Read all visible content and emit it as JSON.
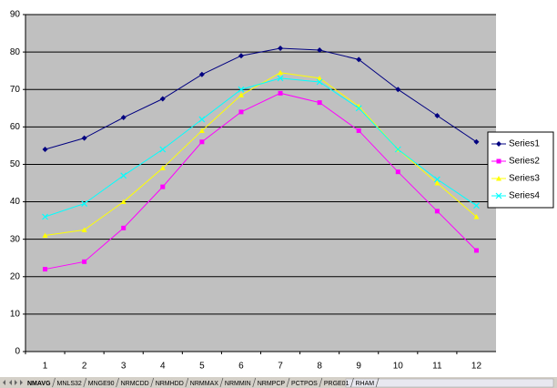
{
  "chart_data": {
    "type": "line",
    "categories": [
      "1",
      "2",
      "3",
      "4",
      "5",
      "6",
      "7",
      "8",
      "9",
      "10",
      "11",
      "12"
    ],
    "series": [
      {
        "name": "Series1",
        "color": "#000080",
        "marker": "diamond",
        "values": [
          54,
          57,
          62.5,
          67.5,
          74,
          79,
          81,
          80.5,
          78,
          70,
          63,
          56
        ]
      },
      {
        "name": "Series2",
        "color": "#ff00ff",
        "marker": "square",
        "values": [
          22,
          24,
          33,
          44,
          56,
          64,
          69,
          66.5,
          59,
          48,
          37.5,
          27
        ]
      },
      {
        "name": "Series3",
        "color": "#ffff00",
        "marker": "triangle",
        "values": [
          31,
          32.5,
          40,
          49,
          59,
          68.5,
          74.5,
          73,
          65.5,
          54,
          45,
          36
        ]
      },
      {
        "name": "Series4",
        "color": "#00ffff",
        "marker": "x",
        "values": [
          36,
          39.5,
          47,
          54,
          62,
          70,
          73,
          72,
          65,
          54,
          46,
          39
        ]
      }
    ],
    "ylim": [
      0,
      90
    ],
    "yticks": [
      0,
      10,
      20,
      30,
      40,
      50,
      60,
      70,
      80,
      90
    ],
    "grid": true,
    "legend": "right"
  },
  "sheet_tabs": [
    "NMAVG",
    "MNLS32",
    "MNGE90",
    "NRMCDD",
    "NRMHDD",
    "NRMMAX",
    "NRMMIN",
    "NRMPCP",
    "PCTPOS",
    "PRGE01",
    "RHAM"
  ]
}
